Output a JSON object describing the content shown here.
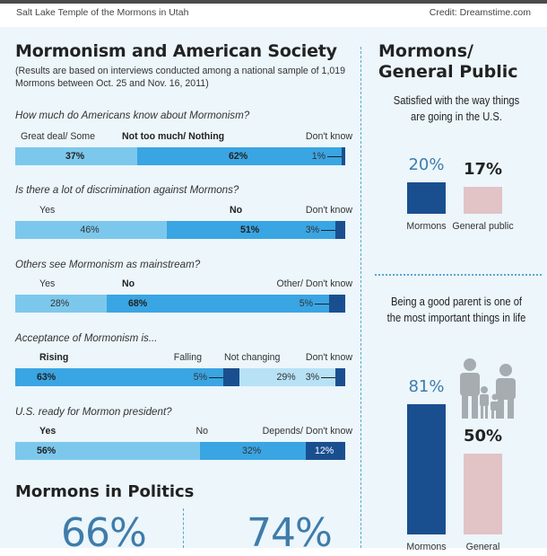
{
  "header": {
    "caption": "Salt Lake Temple of the Mormons in Utah",
    "credit": "Credit: Dreamstime.com"
  },
  "main": {
    "title": "Mormonism and American Society",
    "note": "(Results are based on interviews conducted among a national sample of 1,019 Mormons between Oct. 25 and Nov. 16, 2011)"
  },
  "colors": {
    "light": "#7cc8ec",
    "mid": "#3aa5e3",
    "pale": "#b7e1f5",
    "dark": "#1a4f8f",
    "pink": "#e2c3c6",
    "pctblue": "#3f7caa"
  },
  "chart_data": [
    {
      "type": "bar",
      "orientation": "horizontal-stacked",
      "title": "How much do Americans know about Mormonism?",
      "categories": [
        "Great deal/ Some",
        "Not too much/ Nothing",
        "Don't know"
      ],
      "values": [
        37,
        62,
        1
      ],
      "value_labels": [
        "37%",
        "62%",
        "1%"
      ]
    },
    {
      "type": "bar",
      "orientation": "horizontal-stacked",
      "title": "Is there a lot of discrimination against Mormons?",
      "categories": [
        "Yes",
        "No",
        "Don't know"
      ],
      "values": [
        46,
        51,
        3
      ],
      "value_labels": [
        "46%",
        "51%",
        "3%"
      ]
    },
    {
      "type": "bar",
      "orientation": "horizontal-stacked",
      "title": "Others see Mormonism as mainstream?",
      "categories": [
        "Yes",
        "No",
        "Other/ Don't know"
      ],
      "values": [
        28,
        68,
        5
      ],
      "value_labels": [
        "28%",
        "68%",
        "5%"
      ]
    },
    {
      "type": "bar",
      "orientation": "horizontal-stacked",
      "title": "Acceptance of Mormonism is...",
      "categories": [
        "Rising",
        "Falling",
        "Not changing",
        "Don't know"
      ],
      "values": [
        63,
        5,
        29,
        3
      ],
      "value_labels": [
        "63%",
        "5%",
        "29%",
        "3%"
      ]
    },
    {
      "type": "bar",
      "orientation": "horizontal-stacked",
      "title": "U.S. ready for Mormon president?",
      "categories": [
        "Yes",
        "No",
        "Depends/ Don't know"
      ],
      "values": [
        56,
        32,
        12
      ],
      "value_labels": [
        "56%",
        "32%",
        "12%"
      ]
    },
    {
      "type": "bar",
      "title": "Satisfied with the way things are going in the U.S.",
      "categories": [
        "Mormons",
        "General public"
      ],
      "values": [
        20,
        17
      ],
      "value_labels": [
        "20%",
        "17%"
      ]
    },
    {
      "type": "bar",
      "title": "Being a good parent is one of the most important things in life",
      "categories": [
        "Mormons",
        "General"
      ],
      "values": [
        81,
        50
      ],
      "value_labels": [
        "81%",
        "50%"
      ]
    }
  ],
  "politics": {
    "title": "Mormons in Politics",
    "stat1": "66%",
    "stat2": "74%"
  },
  "side": {
    "title_line1": "Mormons/",
    "title_line2": "General Public"
  }
}
